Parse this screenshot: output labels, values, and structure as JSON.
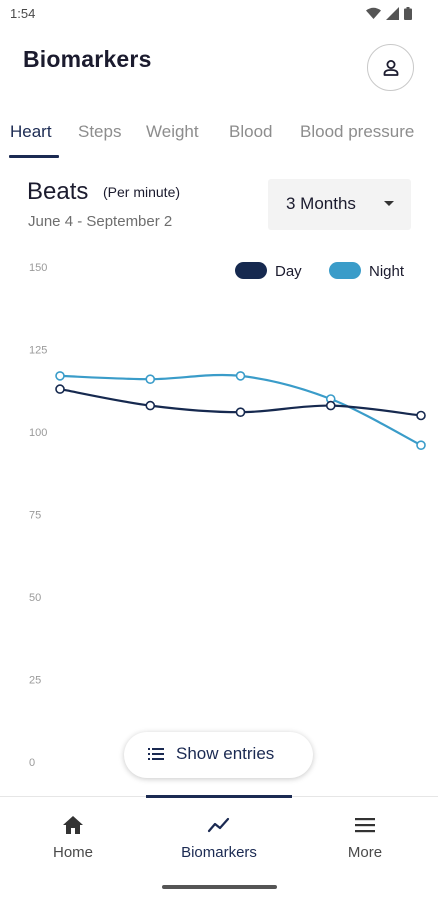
{
  "status_bar": {
    "time": "1:54"
  },
  "header": {
    "title": "Biomarkers",
    "profile_icon": "person-icon"
  },
  "tabs": [
    {
      "label": "Heart",
      "active": true
    },
    {
      "label": "Steps",
      "active": false
    },
    {
      "label": "Weight",
      "active": false
    },
    {
      "label": "Blood",
      "active": false
    },
    {
      "label": "Blood pressure",
      "active": false
    }
  ],
  "metric": {
    "title": "Beats",
    "unit": "(Per minute)",
    "date_range": "June 4 - September 2",
    "range_select": "3 Months"
  },
  "colors": {
    "accent": "#1b2a52",
    "day": "#16294f",
    "night": "#3a9cc9"
  },
  "chart_data": {
    "type": "line",
    "title": "",
    "xlabel": "",
    "ylabel": "",
    "ylim": [
      0,
      150
    ],
    "yticks": [
      "0",
      "25",
      "50",
      "75",
      "100",
      "125",
      "150"
    ],
    "grid": false,
    "legend": "top-right",
    "x": [
      0,
      1,
      2,
      3,
      4
    ],
    "series": [
      {
        "name": "Day",
        "color": "#16294f",
        "values": [
          113,
          108,
          106,
          108,
          105
        ]
      },
      {
        "name": "Night",
        "color": "#3a9cc9",
        "values": [
          117,
          116,
          117,
          110,
          96
        ]
      }
    ]
  },
  "show_entries": {
    "label": "Show entries",
    "icon": "list-icon"
  },
  "bottom_nav": [
    {
      "label": "Home",
      "icon": "home-icon",
      "active": false
    },
    {
      "label": "Biomarkers",
      "icon": "trend-icon",
      "active": true
    },
    {
      "label": "More",
      "icon": "menu-icon",
      "active": false
    }
  ]
}
